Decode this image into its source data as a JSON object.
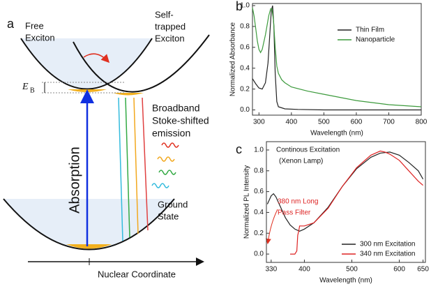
{
  "diagram": {
    "panel_label": "a",
    "free_exciton": [
      "Free",
      "Exciton"
    ],
    "self_trapped": [
      "Self-",
      "trapped",
      "Exciton"
    ],
    "binding_energy": "E",
    "binding_energy_sub": "B",
    "absorption": "Absorption",
    "emission": [
      "Broadband",
      "Stoke-shifted",
      "emission"
    ],
    "ground_state": [
      "Ground",
      "State"
    ],
    "x_axis": "Nuclear Coordinate"
  },
  "chart_data": [
    {
      "type": "line",
      "panel_label": "b",
      "x_label": "Wavelength (nm)",
      "y_label": "Normalized Absorbance",
      "xlim": [
        280,
        800
      ],
      "ylim": [
        -0.05,
        1.02
      ],
      "xticks": [
        300,
        400,
        500,
        600,
        700,
        800
      ],
      "yticks": [
        {
          "value": 0,
          "label": "0.0"
        },
        {
          "value": 0.2,
          "label": "0.2"
        },
        {
          "value": 0.4,
          "label": "0.4"
        },
        {
          "value": 0.6,
          "label": "0.6"
        },
        {
          "value": 0.8,
          "label": "0.8"
        },
        {
          "value": 1,
          "label": "1.0"
        }
      ],
      "legend": "upper right",
      "series": [
        {
          "name": "Thin Film",
          "color": "#222222",
          "x": [
            280,
            290,
            300,
            310,
            320,
            328,
            334,
            338,
            342,
            346,
            350,
            355,
            360,
            380,
            420,
            500,
            600,
            700,
            800
          ],
          "values": [
            0.3,
            0.25,
            0.21,
            0.2,
            0.26,
            0.45,
            0.75,
            0.95,
            1.0,
            0.8,
            0.35,
            0.08,
            0.03,
            0.01,
            0.005,
            0.0,
            0.0,
            0.0,
            0.0
          ]
        },
        {
          "name": "Nanoparticle",
          "color": "#3c9a3c",
          "x": [
            280,
            285,
            290,
            295,
            300,
            305,
            310,
            320,
            330,
            336,
            340,
            345,
            350,
            355,
            360,
            370,
            380,
            400,
            450,
            500,
            550,
            600,
            700,
            800
          ],
          "values": [
            0.98,
            0.9,
            0.78,
            0.66,
            0.58,
            0.55,
            0.58,
            0.72,
            0.9,
            0.97,
            0.97,
            0.85,
            0.6,
            0.42,
            0.35,
            0.29,
            0.26,
            0.22,
            0.18,
            0.15,
            0.12,
            0.09,
            0.05,
            0.03
          ]
        }
      ]
    },
    {
      "type": "line",
      "panel_label": "c",
      "x_label": "Wavelength (nm)",
      "y_label": "Normalized PL Intensity",
      "xlim": [
        320,
        655
      ],
      "ylim": [
        -0.08,
        1.08
      ],
      "xticks": [
        330,
        400,
        500,
        600,
        650
      ],
      "yticks": [
        {
          "value": 0,
          "label": "0.0"
        },
        {
          "value": 0.2,
          "label": "0.2"
        },
        {
          "value": 0.4,
          "label": "0.4"
        },
        {
          "value": 0.6,
          "label": "0.6"
        },
        {
          "value": 0.8,
          "label": "0.8"
        },
        {
          "value": 1,
          "label": "1.0"
        }
      ],
      "legend": "lower right",
      "annotations": [
        [
          "Continous Excitation",
          "(Xenon Lamp)"
        ],
        [
          "380 nm Long",
          "Pass Filter"
        ]
      ],
      "series": [
        {
          "name": "300 nm Excitation",
          "color": "#222222",
          "x": [
            322,
            330,
            335,
            340,
            350,
            360,
            370,
            380,
            390,
            400,
            420,
            450,
            480,
            510,
            540,
            560,
            580,
            600,
            620,
            640,
            650
          ],
          "values": [
            0.48,
            0.56,
            0.58,
            0.55,
            0.45,
            0.35,
            0.28,
            0.24,
            0.22,
            0.24,
            0.3,
            0.45,
            0.65,
            0.82,
            0.93,
            0.97,
            0.98,
            0.95,
            0.88,
            0.8,
            0.72
          ]
        },
        {
          "name": "340 nm Excitation",
          "color": "#dd2222",
          "x": [
            370,
            380,
            384,
            386,
            388,
            390,
            400,
            420,
            450,
            480,
            510,
            540,
            560,
            570,
            580,
            600,
            620,
            640,
            650
          ],
          "values": [
            0.0,
            0.0,
            0.03,
            0.18,
            0.22,
            0.27,
            0.27,
            0.3,
            0.44,
            0.65,
            0.83,
            0.95,
            0.99,
            0.98,
            0.96,
            0.9,
            0.8,
            0.7,
            0.66
          ]
        }
      ]
    }
  ]
}
